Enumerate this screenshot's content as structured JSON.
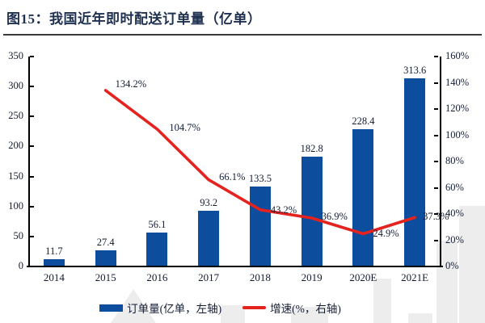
{
  "figure": {
    "label": "图15：",
    "title": "我国近年即时配送订单量（亿单）"
  },
  "colors": {
    "bar": "#0d4d9d",
    "line": "#e4231f",
    "title_text": "#1f3150",
    "label_text": "#131c33",
    "axis_line": "#000000",
    "watermark": "#ededed"
  },
  "chart_data": {
    "type": "bar+line",
    "categories": [
      "2014",
      "2015",
      "2016",
      "2017",
      "2018",
      "2019",
      "2020E",
      "2021E"
    ],
    "series": [
      {
        "name": "订单量(亿单，左轴)",
        "type": "bar",
        "axis": "left",
        "values": [
          11.7,
          27.4,
          56.1,
          93.2,
          133.5,
          182.8,
          228.4,
          313.6
        ]
      },
      {
        "name": "增速(%，右轴)",
        "type": "line",
        "axis": "right",
        "values": [
          null,
          134.2,
          104.7,
          66.1,
          43.2,
          36.9,
          24.9,
          37.3
        ]
      }
    ],
    "bar_labels": [
      "11.7",
      "27.4",
      "56.1",
      "93.2",
      "133.5",
      "182.8",
      "228.4",
      "313.6"
    ],
    "line_labels": [
      null,
      "134.2%",
      "104.7%",
      "66.1%",
      "43.2%",
      "36.9%",
      "24.9%",
      "37.3%"
    ],
    "line_label_offsets": [
      null,
      [
        12,
        -15
      ],
      [
        15,
        -9
      ],
      [
        13,
        -11
      ],
      [
        13,
        -7
      ],
      [
        12,
        -9
      ],
      [
        12,
        -8
      ],
      [
        10,
        -8
      ]
    ],
    "left_axis": {
      "min": 0,
      "max": 350,
      "ticks": [
        "0",
        "50",
        "100",
        "150",
        "200",
        "250",
        "300",
        "350"
      ]
    },
    "right_axis": {
      "min": 0,
      "max": 160,
      "unit": "%",
      "ticks": [
        "0%",
        "20%",
        "40%",
        "60%",
        "80%",
        "100%",
        "120%",
        "140%",
        "160%"
      ]
    },
    "legend": [
      {
        "label": "订单量(亿单，左轴)",
        "marker": "bar"
      },
      {
        "label": "增速(%，右轴)",
        "marker": "line"
      }
    ],
    "grid": false,
    "legend_position": "bottom-center"
  }
}
